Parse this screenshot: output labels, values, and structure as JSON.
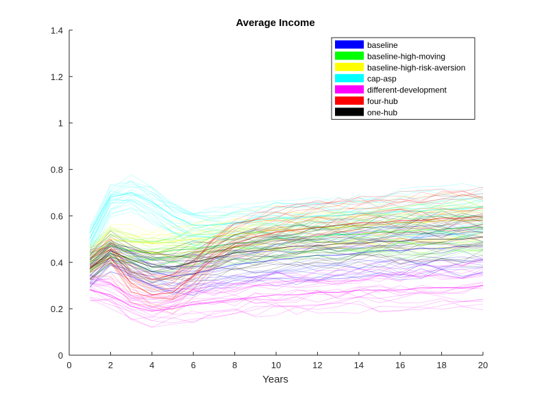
{
  "chart_data": {
    "type": "line",
    "title": "Average Income",
    "xlabel": "Years",
    "ylabel": "",
    "xlim": [
      0,
      20
    ],
    "ylim": [
      0,
      1.4
    ],
    "xticks": [
      0,
      2,
      4,
      6,
      8,
      10,
      12,
      14,
      16,
      18,
      20
    ],
    "yticks": [
      0,
      0.2,
      0.4,
      0.6,
      0.8,
      1,
      1.2,
      1.4
    ],
    "grid": false,
    "legend_position": "top-right",
    "series": [
      {
        "name": "baseline",
        "color": "#0000ff",
        "x": [
          1,
          2,
          3,
          4,
          5,
          6,
          7,
          8,
          9,
          10,
          11,
          12,
          13,
          14,
          15,
          16,
          17,
          18,
          19,
          20
        ],
        "values": [
          0.38,
          0.44,
          0.4,
          0.36,
          0.34,
          0.35,
          0.37,
          0.39,
          0.4,
          0.41,
          0.42,
          0.43,
          0.43,
          0.44,
          0.45,
          0.45,
          0.46,
          0.46,
          0.47,
          0.47
        ]
      },
      {
        "name": "baseline-high-moving",
        "color": "#00ff00",
        "x": [
          1,
          2,
          3,
          4,
          5,
          6,
          7,
          8,
          9,
          10,
          11,
          12,
          13,
          14,
          15,
          16,
          17,
          18,
          19,
          20
        ],
        "values": [
          0.4,
          0.47,
          0.45,
          0.44,
          0.45,
          0.46,
          0.47,
          0.48,
          0.49,
          0.5,
          0.51,
          0.51,
          0.52,
          0.52,
          0.53,
          0.53,
          0.54,
          0.54,
          0.55,
          0.55
        ]
      },
      {
        "name": "baseline-high-risk-aversion",
        "color": "#ffff00",
        "x": [
          1,
          2,
          3,
          4,
          5,
          6,
          7,
          8,
          9,
          10,
          11,
          12,
          13,
          14,
          15,
          16,
          17,
          18,
          19,
          20
        ],
        "values": [
          0.42,
          0.5,
          0.49,
          0.48,
          0.49,
          0.5,
          0.51,
          0.52,
          0.53,
          0.54,
          0.54,
          0.55,
          0.55,
          0.56,
          0.56,
          0.57,
          0.57,
          0.58,
          0.58,
          0.58
        ]
      },
      {
        "name": "cap-asp",
        "color": "#00ffff",
        "x": [
          1,
          2,
          3,
          4,
          5,
          6,
          7,
          8,
          9,
          10,
          11,
          12,
          13,
          14,
          15,
          16,
          17,
          18,
          19,
          20
        ],
        "values": [
          0.5,
          0.68,
          0.7,
          0.66,
          0.6,
          0.56,
          0.56,
          0.57,
          0.58,
          0.59,
          0.59,
          0.6,
          0.6,
          0.61,
          0.61,
          0.62,
          0.62,
          0.63,
          0.63,
          0.64
        ]
      },
      {
        "name": "different-development",
        "color": "#ff00ff",
        "x": [
          1,
          2,
          3,
          4,
          5,
          6,
          7,
          8,
          9,
          10,
          11,
          12,
          13,
          14,
          15,
          16,
          17,
          18,
          19,
          20
        ],
        "values": [
          0.28,
          0.26,
          0.21,
          0.19,
          0.2,
          0.22,
          0.23,
          0.24,
          0.25,
          0.26,
          0.26,
          0.27,
          0.27,
          0.28,
          0.28,
          0.28,
          0.29,
          0.29,
          0.29,
          0.3
        ]
      },
      {
        "name": "four-hub",
        "color": "#ff0000",
        "x": [
          1,
          2,
          3,
          4,
          5,
          6,
          7,
          8,
          9,
          10,
          11,
          12,
          13,
          14,
          15,
          16,
          17,
          18,
          19,
          20
        ],
        "values": [
          0.38,
          0.42,
          0.31,
          0.26,
          0.27,
          0.34,
          0.42,
          0.48,
          0.51,
          0.53,
          0.54,
          0.55,
          0.56,
          0.57,
          0.57,
          0.58,
          0.58,
          0.59,
          0.59,
          0.6
        ]
      },
      {
        "name": "one-hub",
        "color": "#000000",
        "x": [
          1,
          2,
          3,
          4,
          5,
          6,
          7,
          8,
          9,
          10,
          11,
          12,
          13,
          14,
          15,
          16,
          17,
          18,
          19,
          20
        ],
        "values": [
          0.37,
          0.45,
          0.41,
          0.38,
          0.38,
          0.4,
          0.42,
          0.44,
          0.45,
          0.46,
          0.47,
          0.47,
          0.48,
          0.48,
          0.49,
          0.49,
          0.5,
          0.5,
          0.5,
          0.51
        ]
      }
    ]
  }
}
